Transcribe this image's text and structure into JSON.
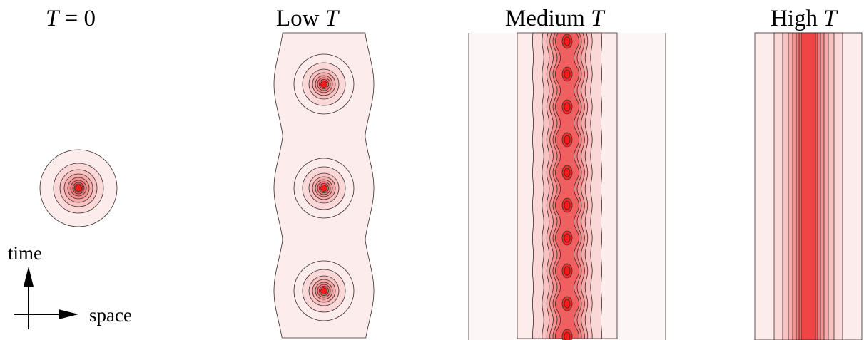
{
  "panels": [
    {
      "id": "t0",
      "label": "T = 0",
      "label_prefix": "",
      "label_var": "T",
      "label_suffix": " = 0"
    },
    {
      "id": "low",
      "label": "Low T",
      "label_prefix": "Low ",
      "label_var": "T",
      "label_suffix": ""
    },
    {
      "id": "medium",
      "label": "Medium T",
      "label_prefix": "Medium ",
      "label_var": "T",
      "label_suffix": ""
    },
    {
      "id": "high",
      "label": "High T",
      "label_prefix": "High ",
      "label_var": "T",
      "label_suffix": ""
    }
  ],
  "axes": {
    "vertical": "time",
    "horizontal": "space"
  },
  "colors": {
    "levels": [
      "#fdecec",
      "#fbd8d8",
      "#f8c2c2",
      "#f6aaaa",
      "#f49292",
      "#f27a7a",
      "#f06060",
      "#ef4545",
      "#ee2a2a",
      "#ff1a1a"
    ],
    "contour_stroke": "#3a2a2a",
    "text": "#000000"
  }
}
